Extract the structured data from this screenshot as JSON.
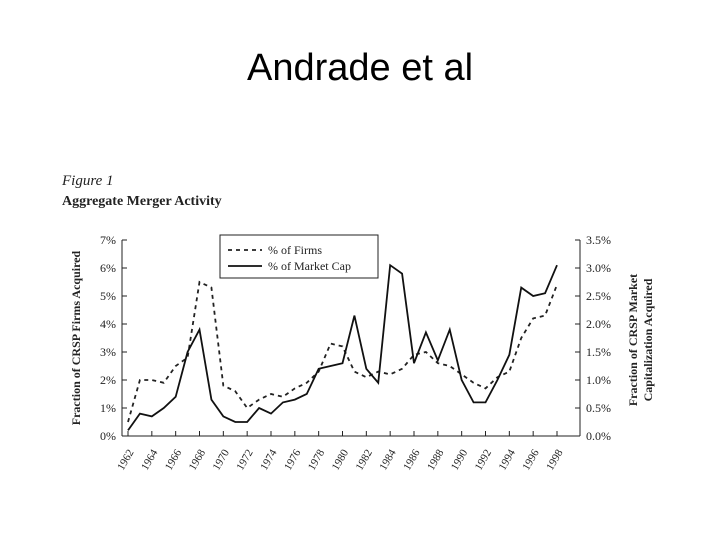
{
  "slide_title": "Andrade et al",
  "chart_data": {
    "type": "line",
    "figure_label": "Figure 1",
    "title": "Aggregate Merger Activity",
    "ylabel": "Fraction of CRSP Firms Acquired",
    "y2label": [
      "Fraction of CRSP Market",
      "Capitalization Acquired"
    ],
    "x": [
      1962,
      1963,
      1964,
      1965,
      1966,
      1967,
      1968,
      1969,
      1970,
      1971,
      1972,
      1973,
      1974,
      1975,
      1976,
      1977,
      1978,
      1979,
      1980,
      1981,
      1982,
      1983,
      1984,
      1985,
      1986,
      1987,
      1988,
      1989,
      1990,
      1991,
      1992,
      1993,
      1994,
      1995,
      1996,
      1997,
      1998
    ],
    "xlim": [
      1962,
      1998
    ],
    "xticks": [
      1962,
      1964,
      1966,
      1968,
      1970,
      1972,
      1974,
      1976,
      1978,
      1980,
      1982,
      1984,
      1986,
      1988,
      1990,
      1992,
      1994,
      1996,
      1998
    ],
    "ylim": [
      0,
      7
    ],
    "yticks": [
      {
        "value": 0,
        "label": "0%"
      },
      {
        "value": 1,
        "label": "1%"
      },
      {
        "value": 2,
        "label": "2%"
      },
      {
        "value": 3,
        "label": "3%"
      },
      {
        "value": 4,
        "label": "4%"
      },
      {
        "value": 5,
        "label": "5%"
      },
      {
        "value": 6,
        "label": "6%"
      },
      {
        "value": 7,
        "label": "7%"
      }
    ],
    "y2lim": [
      0,
      3.5
    ],
    "y2ticks": [
      {
        "value": 0,
        "label": "0.0%"
      },
      {
        "value": 0.5,
        "label": "0.5%"
      },
      {
        "value": 1,
        "label": "1.0%"
      },
      {
        "value": 1.5,
        "label": "1.5%"
      },
      {
        "value": 2,
        "label": "2.0%"
      },
      {
        "value": 2.5,
        "label": "2.5%"
      },
      {
        "value": 3,
        "label": "3.0%"
      },
      {
        "value": 3.5,
        "label": "3.5%"
      }
    ],
    "series": [
      {
        "name": "% of Firms",
        "color": "#222222",
        "style": "dashed",
        "values": [
          0.5,
          2.0,
          2.0,
          1.9,
          2.5,
          2.8,
          5.5,
          5.3,
          1.8,
          1.6,
          1.0,
          1.3,
          1.5,
          1.4,
          1.7,
          1.9,
          2.3,
          3.3,
          3.2,
          2.3,
          2.1,
          2.3,
          2.2,
          2.4,
          2.9,
          3.0,
          2.6,
          2.5,
          2.2,
          1.9,
          1.7,
          2.1,
          2.3,
          3.5,
          4.2,
          4.3,
          5.4
        ]
      },
      {
        "name": "% of Market Cap",
        "color": "#111111",
        "style": "solid",
        "axis": "y2",
        "values": [
          0.1,
          0.4,
          0.35,
          0.5,
          0.7,
          1.5,
          1.9,
          0.65,
          0.35,
          0.25,
          0.25,
          0.5,
          0.4,
          0.6,
          0.65,
          0.75,
          1.2,
          1.25,
          1.3,
          2.15,
          1.2,
          0.95,
          3.05,
          2.9,
          1.3,
          1.85,
          1.35,
          1.9,
          1.0,
          0.6,
          0.6,
          1.0,
          1.45,
          2.65,
          2.5,
          2.55,
          3.05
        ]
      }
    ]
  }
}
